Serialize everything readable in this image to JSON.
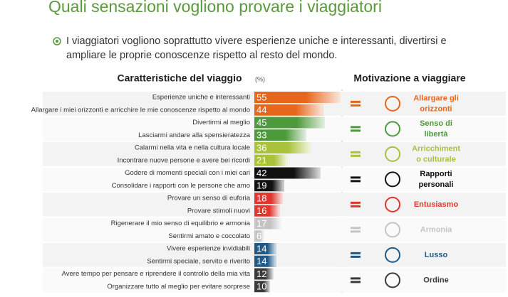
{
  "chart_data": {
    "type": "bar",
    "title": "Quali sensazioni vogliono provare i viaggiatori",
    "subtitle": "I viaggiatori vogliono soprattutto vivere esperienze uniche e interessanti, divertirsi e ampliare le proprie conoscenze rispetto al resto del mondo.",
    "x_label": "Caratteristiche del viaggio",
    "unit_label": "(%)",
    "group_label": "Motivazione a viaggiare",
    "xlim": [
      0,
      60
    ],
    "series": [
      {
        "name": [
          "Allargare gli",
          "orizzonti"
        ],
        "color": "#e8661a",
        "categories": [
          "Esperienze uniche e interessanti",
          "Allargare i miei orizzonti e arricchire le mie conoscenze rispetto al mondo"
        ],
        "values": [
          55,
          44
        ]
      },
      {
        "name": [
          "Senso di",
          "libertà"
        ],
        "color": "#4c9a3b",
        "categories": [
          "Divertirmi al meglio",
          "Lasciarmi andare alla spensieratezza"
        ],
        "values": [
          45,
          33
        ]
      },
      {
        "name": [
          "Arricchiment",
          "o culturale"
        ],
        "color": "#a9c23c",
        "categories": [
          "Calarmi nella vita e nella cultura locale",
          "Incontrare nuove persone e avere bei ricordi"
        ],
        "values": [
          36,
          21
        ]
      },
      {
        "name": [
          "Rapporti",
          "personali"
        ],
        "color": "#111111",
        "categories": [
          "Godere di momenti speciali con i miei cari",
          "Consolidare i rapporti con le persone che amo"
        ],
        "values": [
          42,
          19
        ]
      },
      {
        "name": [
          "Entusiasmo"
        ],
        "color": "#e0362b",
        "categories": [
          "Provare un senso di euforia",
          "Provare stimoli nuovi"
        ],
        "values": [
          18,
          16
        ]
      },
      {
        "name": [
          "Armonia"
        ],
        "color": "#c4c4c4",
        "categories": [
          "Rigenerare il mio senso di equilibrio e armonia",
          "Sentirmi amato e coccolato"
        ],
        "values": [
          17,
          6
        ]
      },
      {
        "name": [
          "Lusso"
        ],
        "color": "#1f5a87",
        "categories": [
          "Vivere esperienze invidiabili",
          "Sentirmi speciale, servito e riverito"
        ],
        "values": [
          14,
          14
        ]
      },
      {
        "name": [
          "Ordine"
        ],
        "color": "#3a3a3a",
        "categories": [
          "Avere tempo per pensare e riprendere il controllo della mia vita",
          "Organizzare tutto al meglio per evitare sorprese"
        ],
        "values": [
          12,
          10
        ]
      }
    ]
  }
}
